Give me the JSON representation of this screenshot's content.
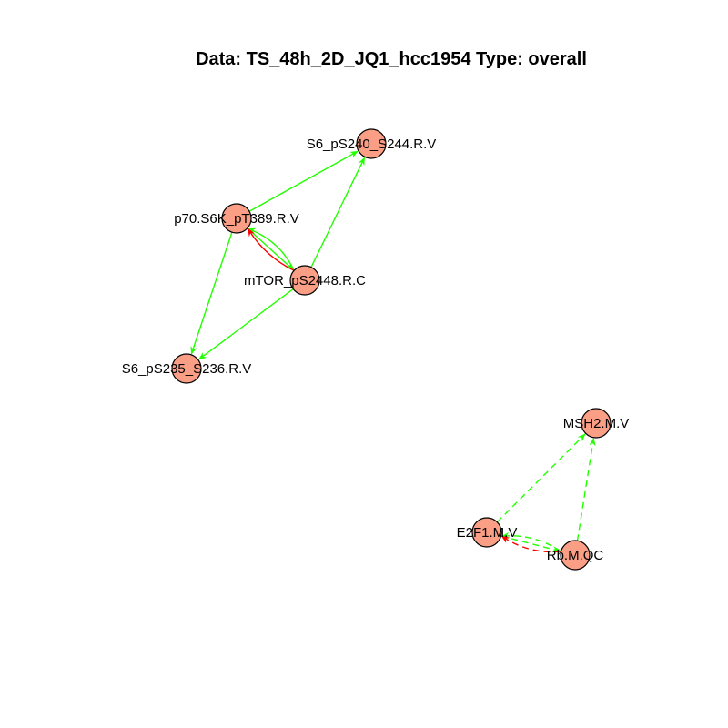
{
  "title": "Data: TS_48h_2D_JQ1_hcc1954 Type: overall",
  "colors": {
    "node_fill": "#FA9E86",
    "activation": "#22FF00",
    "inhibition": "#FF0000"
  },
  "nodes": [
    {
      "id": "s6_240",
      "label": "S6_pS240_S244.R.V"
    },
    {
      "id": "p70",
      "label": "p70.S6K_pT389.R.V"
    },
    {
      "id": "mtor",
      "label": "mTOR_pS2448.R.C"
    },
    {
      "id": "s6_235",
      "label": "S6_pS235_S236.R.V"
    },
    {
      "id": "msh2",
      "label": "MSH2.M.V"
    },
    {
      "id": "e2f1",
      "label": "E2F1.M.V"
    },
    {
      "id": "rb",
      "label": "Rb.M.QC"
    }
  ],
  "edges": [
    {
      "from": "p70",
      "to": "s6_240",
      "type": "activation",
      "style": "solid"
    },
    {
      "from": "mtor",
      "to": "s6_240",
      "type": "activation",
      "style": "solid"
    },
    {
      "from": "p70",
      "to": "s6_235",
      "type": "activation",
      "style": "solid"
    },
    {
      "from": "mtor",
      "to": "s6_235",
      "type": "activation",
      "style": "solid"
    },
    {
      "from": "p70",
      "to": "mtor",
      "type": "activation",
      "style": "solid"
    },
    {
      "from": "mtor",
      "to": "p70",
      "type": "activation",
      "style": "solid"
    },
    {
      "from": "mtor",
      "to": "p70",
      "type": "inhibition",
      "style": "solid"
    },
    {
      "from": "e2f1",
      "to": "msh2",
      "type": "activation",
      "style": "dashed"
    },
    {
      "from": "rb",
      "to": "msh2",
      "type": "activation",
      "style": "dashed"
    },
    {
      "from": "e2f1",
      "to": "rb",
      "type": "activation",
      "style": "dashed"
    },
    {
      "from": "rb",
      "to": "e2f1",
      "type": "activation",
      "style": "dashed"
    },
    {
      "from": "rb",
      "to": "e2f1",
      "type": "inhibition",
      "style": "dashed"
    }
  ]
}
